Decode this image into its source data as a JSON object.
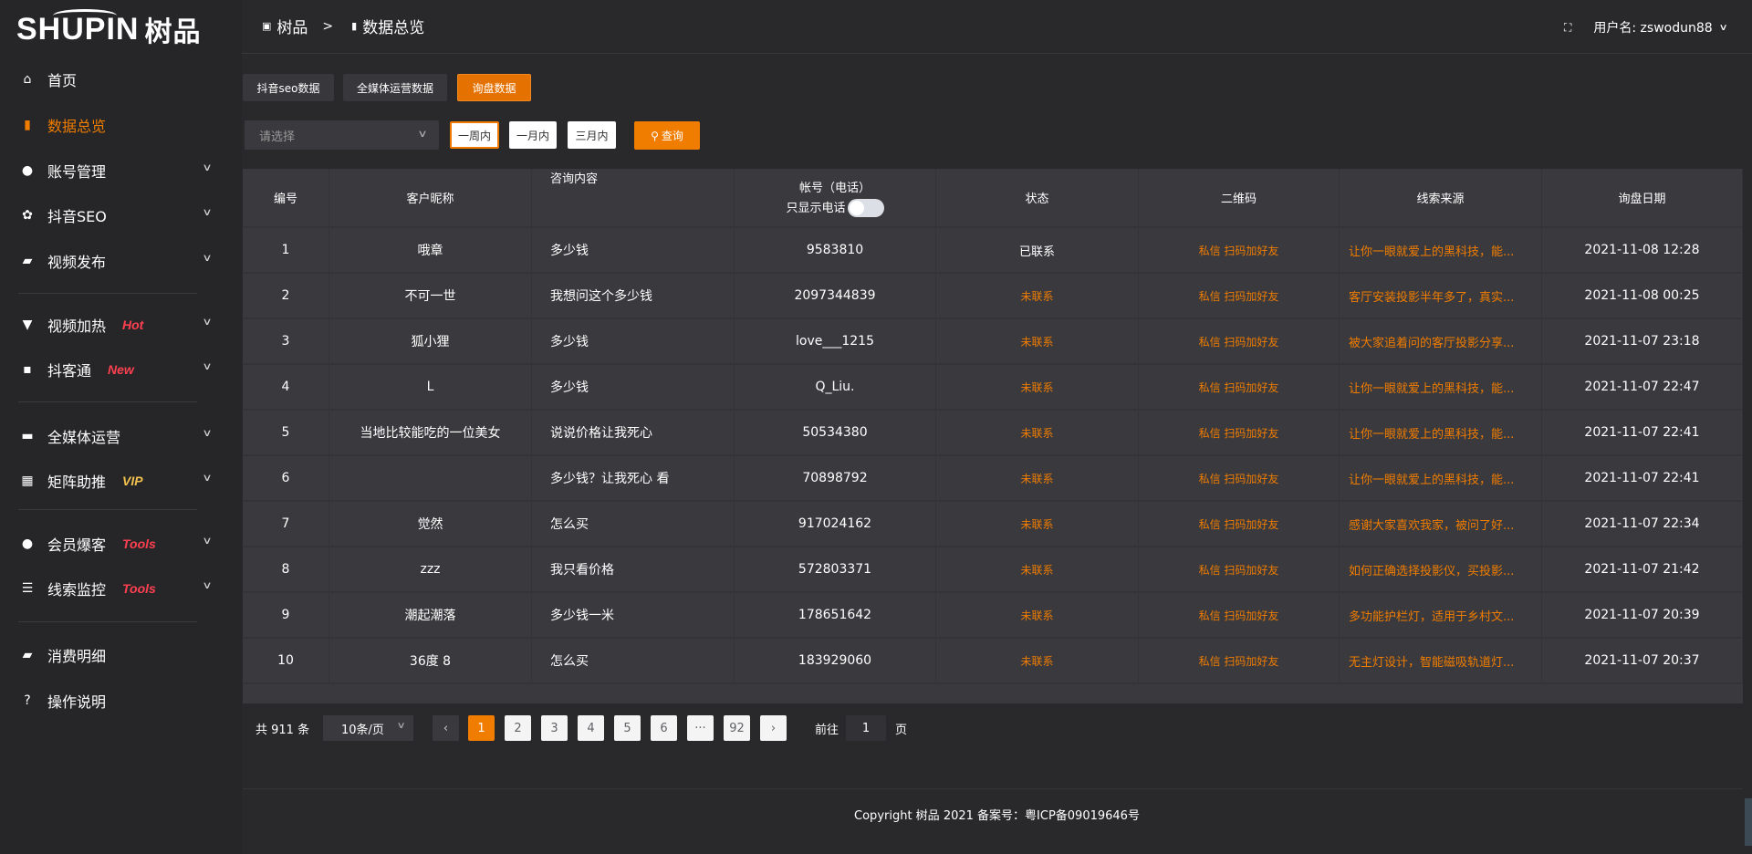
{
  "brand": {
    "logo_text": "SHUPIN",
    "logo_cn": "树品"
  },
  "colors": {
    "accent": "#f07c00",
    "hot": "#ff4050",
    "vip": "#f2c14e"
  },
  "sidebar": {
    "items": [
      {
        "label": "首页",
        "icon": "home-icon",
        "glyph": "⌂"
      },
      {
        "label": "数据总览",
        "icon": "bar-chart-icon",
        "glyph": "▮",
        "active": true
      },
      {
        "label": "账号管理",
        "icon": "user-icon",
        "glyph": "●",
        "chevron": true
      },
      {
        "label": "抖音SEO",
        "icon": "gear-icon",
        "glyph": "✿",
        "chevron": true
      },
      {
        "label": "视频发布",
        "icon": "video-icon",
        "glyph": "▰",
        "chevron": true
      },
      {
        "label": "视频加热",
        "icon": "monitor-icon",
        "glyph": "▼",
        "badge": "Hot",
        "chevron": true
      },
      {
        "label": "抖客通",
        "icon": "chat-icon",
        "glyph": "▪",
        "badge": "New",
        "chevron": true
      },
      {
        "label": "全媒体运营",
        "icon": "desktop-icon",
        "glyph": "▬",
        "chevron": true
      },
      {
        "label": "矩阵助推",
        "icon": "grid-icon",
        "glyph": "▦",
        "badge": "VIP",
        "chevron": true
      },
      {
        "label": "会员爆客",
        "icon": "member-icon",
        "glyph": "●",
        "badge": "Tools",
        "chevron": true
      },
      {
        "label": "线索监控",
        "icon": "sliders-icon",
        "glyph": "☰",
        "badge": "Tools",
        "chevron": true
      },
      {
        "label": "消费明细",
        "icon": "wallet-icon",
        "glyph": "▰"
      },
      {
        "label": "操作说明",
        "icon": "help-icon",
        "glyph": "?"
      }
    ]
  },
  "header": {
    "breadcrumb": [
      "树品",
      "数据总览"
    ],
    "separator": ">",
    "username_label": "用户名: zswodun88"
  },
  "tabs": [
    "抖音seo数据",
    "全媒体运营数据",
    "询盘数据"
  ],
  "filters": {
    "select_placeholder": "请选择",
    "ranges": [
      "一周内",
      "一月内",
      "三月内"
    ],
    "query_label": "查询"
  },
  "table": {
    "columns": [
      "编号",
      "客户昵称",
      "咨询内容",
      "帐号（电话）",
      "状态",
      "二维码",
      "线索来源",
      "询盘日期"
    ],
    "phone_toggle_label": "只显示电话",
    "rows": [
      [
        "1",
        "哦章",
        "多少钱",
        "9583810",
        "已联系",
        "私信 扫码加好友",
        "让你一眼就爱上的黑科技，能...",
        "2021-11-08 12:28"
      ],
      [
        "2",
        "不可一世",
        "我想问这个多少钱",
        "2097344839",
        "未联系",
        "私信 扫码加好友",
        "客厅安装投影半年多了，真实...",
        "2021-11-08 00:25"
      ],
      [
        "3",
        "狐小狸",
        "多少钱",
        "love___1215",
        "未联系",
        "私信 扫码加好友",
        "被大家追着问的客厅投影分享...",
        "2021-11-07 23:18"
      ],
      [
        "4",
        "L",
        "多少钱",
        "Q_Liu.",
        "未联系",
        "私信 扫码加好友",
        "让你一眼就爱上的黑科技，能...",
        "2021-11-07 22:47"
      ],
      [
        "5",
        "当地比较能吃的一位美女",
        "说说价格让我死心",
        "50534380",
        "未联系",
        "私信 扫码加好友",
        "让你一眼就爱上的黑科技，能...",
        "2021-11-07 22:41"
      ],
      [
        "6",
        "",
        "多少钱？让我死心 看",
        "70898792",
        "未联系",
        "私信 扫码加好友",
        "让你一眼就爱上的黑科技，能...",
        "2021-11-07 22:41"
      ],
      [
        "7",
        "觉然",
        "怎么买",
        "917024162",
        "未联系",
        "私信 扫码加好友",
        "感谢大家喜欢我家，被问了好...",
        "2021-11-07 22:34"
      ],
      [
        "8",
        "zzz",
        "我只看价格",
        "572803371",
        "未联系",
        "私信 扫码加好友",
        "如何正确选择投影仪，买投影...",
        "2021-11-07 21:42"
      ],
      [
        "9",
        "潮起潮落",
        "多少钱一米",
        "178651642",
        "未联系",
        "私信 扫码加好友",
        "多功能护栏灯，适用于乡村文...",
        "2021-11-07 20:39"
      ],
      [
        "10",
        "36度 8",
        "怎么买",
        "183929060",
        "未联系",
        "私信 扫码加好友",
        "无主灯设计，智能磁吸轨道灯...",
        "2021-11-07 20:37"
      ]
    ]
  },
  "pagination": {
    "total_label": "共 911 条",
    "page_size": "10条/页",
    "pages": [
      "1",
      "2",
      "3",
      "4",
      "5",
      "6",
      "···",
      "92"
    ],
    "current": "1",
    "goto_label": "前往",
    "goto_value": "1",
    "page_suffix": "页"
  },
  "footer": {
    "copyright": "Copyright 树品 2021 备案号：粤ICP备09019646号"
  }
}
